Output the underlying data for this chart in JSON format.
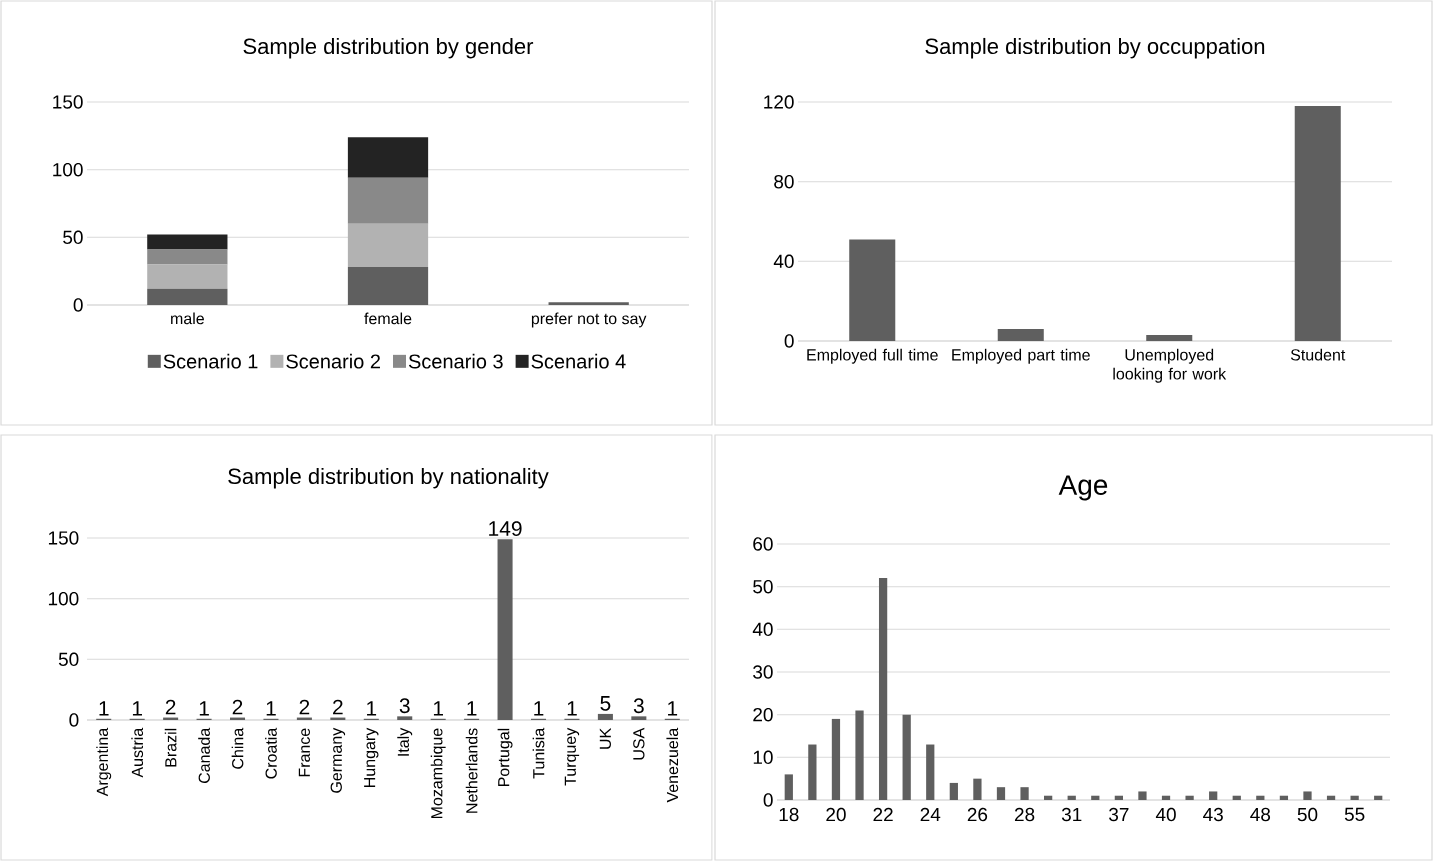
{
  "chart_data": [
    {
      "type": "bar",
      "title": "Sample distribution by gender",
      "categories": [
        "male",
        "female",
        "prefer not to say"
      ],
      "stacked": true,
      "ylim": [
        0,
        150
      ],
      "yticks": [
        0,
        50,
        100,
        150
      ],
      "grid": "y",
      "legend": "bottom",
      "series": [
        {
          "name": "Scenario 1",
          "color": "#5f5f5f",
          "values": [
            12,
            28,
            2
          ]
        },
        {
          "name": "Scenario 2",
          "color": "#b2b2b2",
          "values": [
            18,
            32,
            0
          ]
        },
        {
          "name": "Scenario 3",
          "color": "#898989",
          "values": [
            11,
            34,
            0
          ]
        },
        {
          "name": "Scenario 4",
          "color": "#232323",
          "values": [
            11,
            30,
            0
          ]
        }
      ]
    },
    {
      "type": "bar",
      "title": "Sample distribution by occuppation",
      "categories": [
        "Employed full time",
        "Employed part time",
        "Unemployed looking for work",
        "Student"
      ],
      "values": [
        51,
        6,
        3,
        118
      ],
      "color": "#5f5f5f",
      "ylim": [
        0,
        120
      ],
      "yticks": [
        0,
        40,
        80,
        120
      ],
      "grid": "y"
    },
    {
      "type": "bar",
      "title": "Sample distribution by nationality",
      "categories": [
        "Argentina",
        "Austria",
        "Brazil",
        "Canada",
        "China",
        "Croatia",
        "France",
        "Germany",
        "Hungary",
        "Italy",
        "Mozambique",
        "Netherlands",
        "Portugal",
        "Tunisia",
        "Turquey",
        "UK",
        "USA",
        "Venezuela"
      ],
      "values": [
        1,
        1,
        2,
        1,
        2,
        1,
        2,
        2,
        1,
        3,
        1,
        1,
        149,
        1,
        1,
        5,
        3,
        1
      ],
      "color": "#5f5f5f",
      "data_labels": true,
      "ylim": [
        0,
        150
      ],
      "yticks": [
        0,
        50,
        100,
        150
      ],
      "grid": "y"
    },
    {
      "type": "bar",
      "title": "Age",
      "categories": [
        "18",
        null,
        "20",
        null,
        "22",
        null,
        "24",
        null,
        "26",
        null,
        "28",
        null,
        "31",
        null,
        "37",
        null,
        "40",
        null,
        "43",
        null,
        "48",
        null,
        "50",
        null,
        "55",
        null
      ],
      "values": [
        6,
        13,
        19,
        21,
        52,
        20,
        13,
        4,
        5,
        3,
        3,
        1,
        1,
        1,
        1,
        2,
        1,
        1,
        2,
        1,
        1,
        1,
        2,
        1,
        1,
        1
      ],
      "color": "#5f5f5f",
      "ylim": [
        0,
        60
      ],
      "yticks": [
        0,
        10,
        20,
        30,
        40,
        50,
        60
      ],
      "grid": "y"
    }
  ]
}
